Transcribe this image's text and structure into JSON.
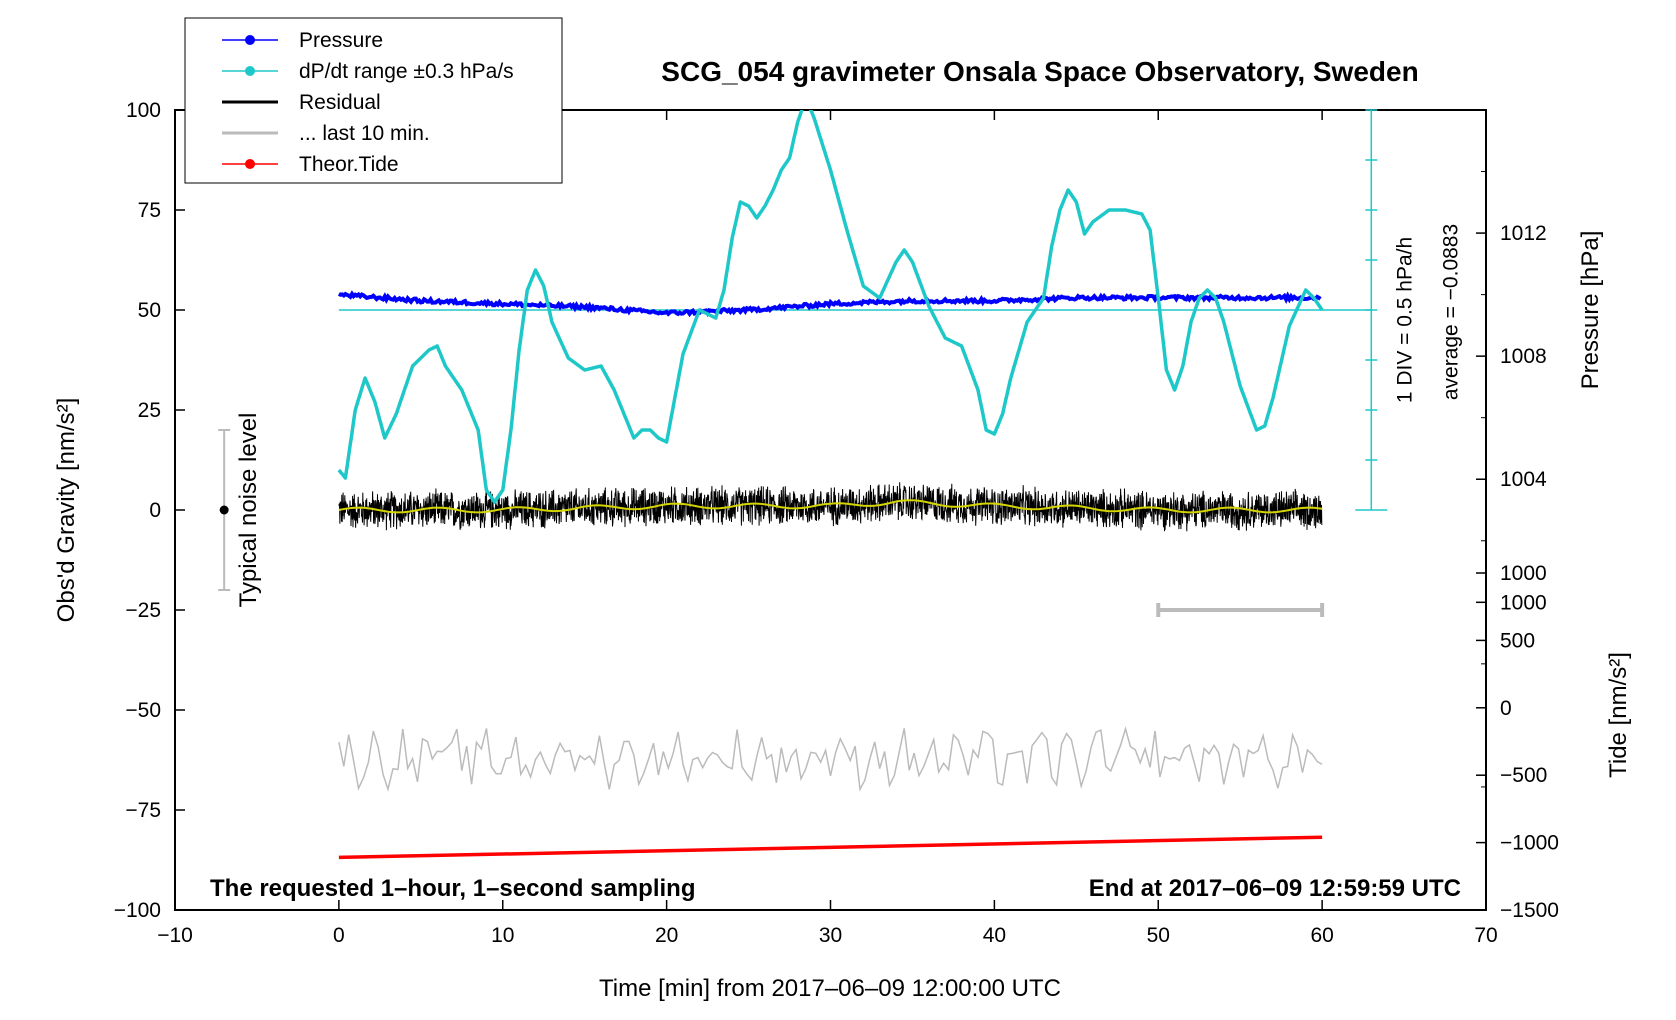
{
  "colors": {
    "pressure": "#0000ff",
    "dpdt": "#1ec8c8",
    "residual": "#000000",
    "last10": "#bbbbbb",
    "tide": "#ff0000",
    "mean": "#d4d400"
  },
  "chart_data": {
    "type": "line",
    "title": "SCG_054 gravimeter Onsala Space Observatory, Sweden",
    "xlabel": "Time [min] from 2017–06–09 12:00:00 UTC",
    "ylabel": "Obs'd Gravity [nm/s²]",
    "xlim": [
      -10,
      70
    ],
    "ylim": [
      -100,
      100
    ],
    "xticks": [
      -10,
      0,
      10,
      20,
      30,
      40,
      50,
      60,
      70
    ],
    "xtick_labels": [
      "−10",
      "0",
      "10",
      "20",
      "30",
      "40",
      "50",
      "60",
      "70"
    ],
    "yticks": [
      -100,
      -75,
      -50,
      -25,
      0,
      25,
      50,
      75,
      100
    ],
    "ytick_labels": [
      "−100",
      "−75",
      "−50",
      "−25",
      "0",
      "25",
      "50",
      "75",
      "100"
    ],
    "pressure_axis": {
      "label": "Pressure [hPa]",
      "ticks": [
        1000,
        1004,
        1008,
        1012
      ],
      "tick_labels": [
        "1000",
        "1004",
        "1008",
        "1012"
      ],
      "range": [
        990,
        1016
      ]
    },
    "tide_axis": {
      "label": "Tide [nm/s²]",
      "ticks": [
        -1500,
        -1000,
        -500,
        0,
        500,
        1000
      ],
      "tick_labels": [
        "−1500",
        "−1000",
        "−500",
        "0",
        "500",
        "1000"
      ],
      "range": [
        -1500,
        1000
      ]
    },
    "dpdt_scale": {
      "label1": "1 DIV = 0.5 hPa/h",
      "label2": "average = −0.0883",
      "x": 63,
      "ymin": 0,
      "ymax": 100,
      "div": 12.5
    },
    "noise_bar": {
      "label": "Typical noise level",
      "x": -7,
      "center": 0,
      "half_range": 20
    },
    "last10_marker": {
      "x_start": 50,
      "x_end": 60,
      "y": -25
    },
    "legend": [
      {
        "name": "Pressure",
        "color": "#0000ff",
        "style": "line-dot"
      },
      {
        "name": "dP/dt range ±0.3 hPa/s",
        "color": "#1ec8c8",
        "style": "line-dot"
      },
      {
        "name": "Residual",
        "color": "#000000",
        "style": "line"
      },
      {
        "name": "... last 10 min.",
        "color": "#bbbbbb",
        "style": "line"
      },
      {
        "name": "Theor.Tide",
        "color": "#ff0000",
        "style": "line-dot"
      }
    ],
    "notes": {
      "left": "The requested 1–hour, 1–second sampling",
      "right": "End at 2017–06–09 12:59:59 UTC"
    },
    "series": [
      {
        "name": "Pressure",
        "axis": "pressure",
        "x": [
          0,
          5,
          10,
          15,
          20,
          25,
          30,
          35,
          40,
          45,
          50,
          55,
          60
        ],
        "values": [
          1010.0,
          1009.8,
          1009.7,
          1009.6,
          1009.4,
          1009.5,
          1009.7,
          1009.8,
          1009.8,
          1009.9,
          1009.9,
          1009.9,
          1009.9
        ]
      },
      {
        "name": "dP/dt range ±0.3 hPa/s",
        "axis": "gravity",
        "baseline": 50,
        "x": [
          0,
          0.4,
          1,
          1.6,
          2.2,
          2.8,
          3.5,
          4.5,
          5.5,
          6,
          6.5,
          7.5,
          8.5,
          9,
          9.5,
          10,
          10.5,
          11,
          11.5,
          12,
          12.5,
          13,
          14,
          15,
          16,
          16.8,
          17.5,
          18,
          18.5,
          19,
          19.5,
          20,
          21,
          22,
          23,
          23.5,
          24,
          24.5,
          25,
          25.5,
          26,
          26.5,
          27,
          27.5,
          28,
          28.5,
          29,
          30,
          31,
          32,
          33,
          34,
          34.5,
          35,
          36,
          37,
          38,
          39,
          39.5,
          40,
          40.5,
          41,
          42,
          43,
          43.5,
          44,
          44.5,
          45,
          45.5,
          46,
          47,
          48,
          49,
          49.5,
          50,
          50.5,
          51,
          51.5,
          52,
          52.5,
          53,
          53.5,
          54,
          55,
          56,
          56.5,
          57,
          58,
          59,
          59.5,
          60
        ],
        "values": [
          10,
          8,
          25,
          33,
          27,
          18,
          24,
          36,
          40,
          41,
          36,
          30,
          20,
          5,
          2,
          5,
          20,
          40,
          55,
          60,
          56,
          47,
          38,
          35,
          36,
          30,
          23,
          18,
          20,
          20,
          18,
          17,
          39,
          50,
          48,
          55,
          68,
          77,
          76,
          73,
          76,
          80,
          85,
          88,
          97,
          103,
          98,
          85,
          70,
          56,
          53,
          62,
          65,
          62,
          51,
          43,
          41,
          30,
          20,
          19,
          24,
          33,
          47,
          53,
          66,
          75,
          80,
          77,
          69,
          72,
          75,
          75,
          74,
          70,
          53,
          35,
          30,
          36,
          47,
          53,
          55,
          53,
          47,
          31,
          20,
          21,
          28,
          46,
          55,
          53,
          50
        ]
      },
      {
        "name": "Residual",
        "axis": "gravity",
        "x": [
          0,
          10,
          20,
          30,
          34,
          40,
          50,
          60
        ],
        "values": [
          0,
          0,
          1,
          1,
          2,
          1,
          0,
          0
        ],
        "noise_amplitude": 4
      },
      {
        "name": "... last 10 min.",
        "axis": "gravity",
        "offset": -62,
        "x": [
          50,
          60
        ],
        "values": [
          0,
          0
        ],
        "noise_amplitude": 5
      },
      {
        "name": "Theor.Tide",
        "axis": "tide",
        "x": [
          0,
          60
        ],
        "values": [
          -1110,
          -960
        ]
      }
    ]
  }
}
